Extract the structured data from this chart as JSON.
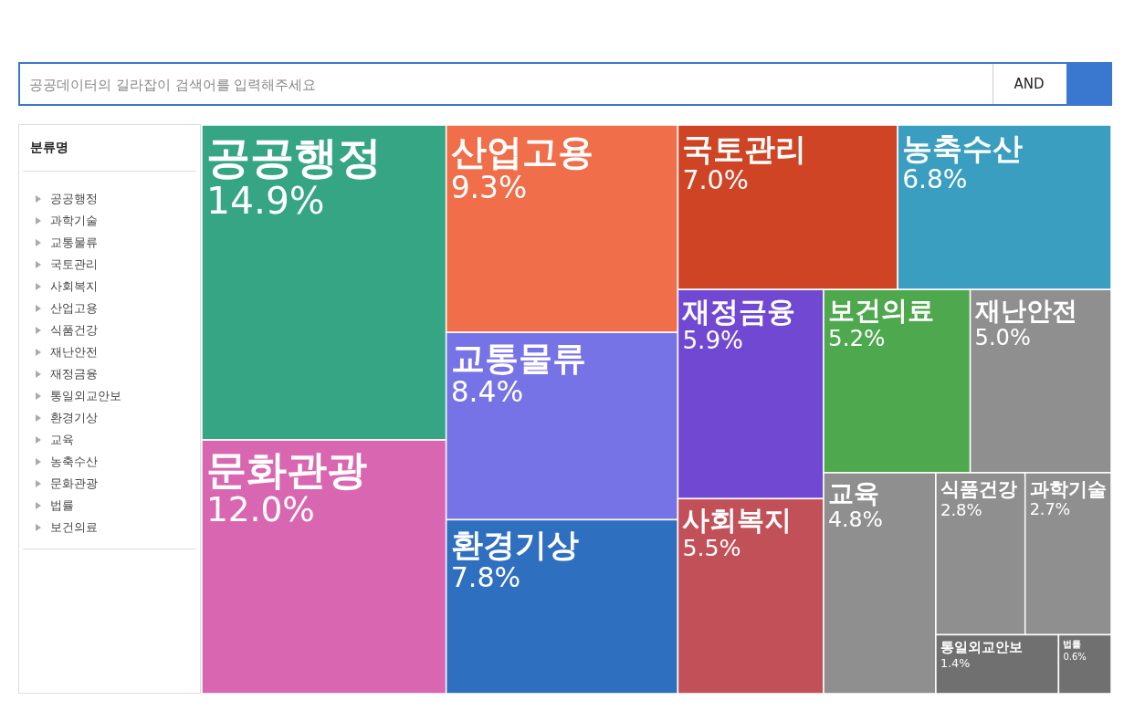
{
  "chart_data": {
    "type": "other",
    "categories": [
      "공공행정",
      "문화관광",
      "산업고용",
      "교통물류",
      "환경기상",
      "국토관리",
      "농축수산",
      "재정금융",
      "사회복지",
      "보건의료",
      "재난안전",
      "교육",
      "식품건강",
      "과학기술",
      "통일외교안보",
      "법률"
    ],
    "values": [
      14.9,
      12.0,
      9.3,
      8.4,
      7.8,
      7.0,
      6.8,
      5.9,
      5.5,
      5.2,
      5.0,
      4.8,
      2.8,
      2.7,
      1.4,
      0.6
    ],
    "value_labels": [
      "14.9%",
      "12.0%",
      "9.3%",
      "8.4%",
      "7.8%",
      "7.0%",
      "6.8%",
      "5.9%",
      "5.5%",
      "5.2%",
      "5.0%",
      "4.8%",
      "2.8%",
      "2.7%",
      "1.4%",
      "0.6%"
    ],
    "colors": [
      "#36a584",
      "#d966b0",
      "#f06e4a",
      "#7673e6",
      "#2f6fbf",
      "#cf4424",
      "#3a9ec0",
      "#7048d1",
      "#c25058",
      "#4ea84e",
      "#8f8f8f",
      "#8f8f8f",
      "#8f8f8f",
      "#8f8f8f",
      "#707070",
      "#707070"
    ],
    "annotations": [
      "공공데이터의 길라잡이 검색어를 입력해주세요",
      "AND",
      "분류명",
      "공공행정",
      "과학기술",
      "교통물류",
      "국토관리",
      "사회복지",
      "산업고용",
      "식품건강",
      "재난안전",
      "재정금융",
      "통일외교안보",
      "환경기상",
      "교육",
      "농축수산",
      "문화관광",
      "법률",
      "보건의료"
    ]
  }
}
